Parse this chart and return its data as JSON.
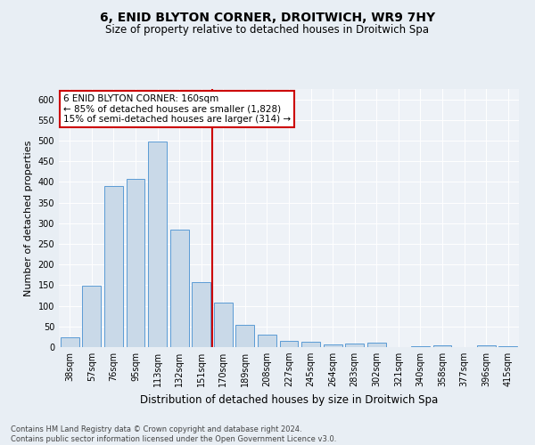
{
  "title": "6, ENID BLYTON CORNER, DROITWICH, WR9 7HY",
  "subtitle": "Size of property relative to detached houses in Droitwich Spa",
  "xlabel": "Distribution of detached houses by size in Droitwich Spa",
  "ylabel": "Number of detached properties",
  "footer_line1": "Contains HM Land Registry data © Crown copyright and database right 2024.",
  "footer_line2": "Contains public sector information licensed under the Open Government Licence v3.0.",
  "bar_labels": [
    "38sqm",
    "57sqm",
    "76sqm",
    "95sqm",
    "113sqm",
    "132sqm",
    "151sqm",
    "170sqm",
    "189sqm",
    "208sqm",
    "227sqm",
    "245sqm",
    "264sqm",
    "283sqm",
    "302sqm",
    "321sqm",
    "340sqm",
    "358sqm",
    "377sqm",
    "396sqm",
    "415sqm"
  ],
  "bar_values": [
    23,
    148,
    390,
    408,
    497,
    285,
    158,
    108,
    53,
    30,
    16,
    12,
    6,
    8,
    10,
    0,
    3,
    4,
    0,
    4,
    3
  ],
  "bar_color": "#c9d9e8",
  "bar_edge_color": "#5b9bd5",
  "vline_x": 6.5,
  "vline_color": "#cc0000",
  "ylim": [
    0,
    625
  ],
  "yticks": [
    0,
    50,
    100,
    150,
    200,
    250,
    300,
    350,
    400,
    450,
    500,
    550,
    600
  ],
  "annotation_text": "6 ENID BLYTON CORNER: 160sqm\n← 85% of detached houses are smaller (1,828)\n15% of semi-detached houses are larger (314) →",
  "annotation_box_color": "#ffffff",
  "annotation_box_edge_color": "#cc0000",
  "bg_color": "#e8eef4",
  "plot_bg_color": "#eef2f7",
  "title_fontsize": 10,
  "subtitle_fontsize": 8.5,
  "xlabel_fontsize": 8.5,
  "ylabel_fontsize": 8,
  "tick_fontsize": 7,
  "annotation_fontsize": 7.5,
  "footer_fontsize": 6
}
